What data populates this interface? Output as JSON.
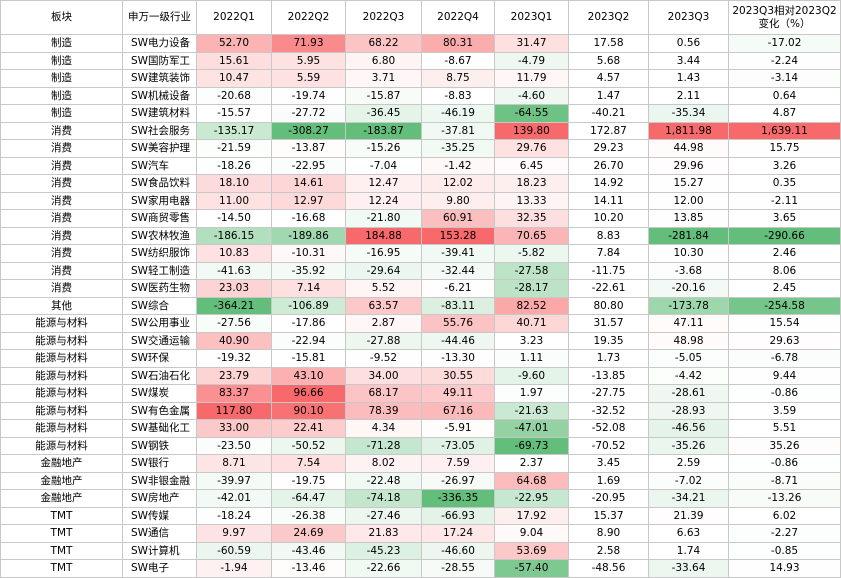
{
  "table": {
    "header": [
      "板块",
      "申万一级行业",
      "2022Q1",
      "2022Q2",
      "2022Q3",
      "2022Q4",
      "2023Q1",
      "2023Q2",
      "2023Q3",
      "2023Q3相对2023Q2变化（%）"
    ],
    "colored_columns": [
      false,
      false,
      true,
      true,
      true,
      true,
      true,
      false,
      true,
      true
    ],
    "scale_colors": {
      "low": "#63be7b",
      "mid": "#ffffff",
      "high": "#f8696b"
    },
    "rows": [
      [
        "制造",
        "SW电力设备",
        "52.70",
        "71.93",
        "68.22",
        "80.31",
        "31.47",
        "17.58",
        "0.56",
        "-17.02"
      ],
      [
        "制造",
        "SW国防军工",
        "15.61",
        "5.95",
        "6.80",
        "-8.67",
        "-4.79",
        "5.68",
        "3.44",
        "-2.24"
      ],
      [
        "制造",
        "SW建筑装饰",
        "10.47",
        "5.59",
        "3.71",
        "8.75",
        "11.79",
        "4.57",
        "1.43",
        "-3.14"
      ],
      [
        "制造",
        "SW机械设备",
        "-20.68",
        "-19.74",
        "-15.87",
        "-8.83",
        "-4.60",
        "1.47",
        "2.11",
        "0.64"
      ],
      [
        "制造",
        "SW建筑材料",
        "-15.57",
        "-27.72",
        "-36.45",
        "-46.19",
        "-64.55",
        "-40.21",
        "-35.34",
        "4.87"
      ],
      [
        "消费",
        "SW社会服务",
        "-135.17",
        "-308.27",
        "-183.87",
        "-37.81",
        "139.80",
        "172.87",
        "1,811.98",
        "1,639.11"
      ],
      [
        "消费",
        "SW美容护理",
        "-21.59",
        "-13.87",
        "-15.26",
        "-35.25",
        "29.76",
        "29.23",
        "44.98",
        "15.75"
      ],
      [
        "消费",
        "SW汽车",
        "-18.26",
        "-22.95",
        "-7.04",
        "-1.42",
        "6.45",
        "26.70",
        "29.96",
        "3.26"
      ],
      [
        "消费",
        "SW食品饮料",
        "18.10",
        "14.61",
        "12.47",
        "12.02",
        "18.23",
        "14.92",
        "15.27",
        "0.35"
      ],
      [
        "消费",
        "SW家用电器",
        "11.00",
        "12.97",
        "12.24",
        "9.80",
        "13.33",
        "14.11",
        "12.00",
        "-2.11"
      ],
      [
        "消费",
        "SW商贸零售",
        "-14.50",
        "-16.68",
        "-21.80",
        "60.91",
        "32.35",
        "10.20",
        "13.85",
        "3.65"
      ],
      [
        "消费",
        "SW农林牧渔",
        "-186.15",
        "-189.86",
        "184.88",
        "153.28",
        "70.65",
        "8.83",
        "-281.84",
        "-290.66"
      ],
      [
        "消费",
        "SW纺织服饰",
        "10.83",
        "-10.31",
        "-16.95",
        "-39.41",
        "-5.82",
        "7.84",
        "10.30",
        "2.46"
      ],
      [
        "消费",
        "SW轻工制造",
        "-41.63",
        "-35.92",
        "-29.64",
        "-32.44",
        "-27.58",
        "-11.75",
        "-3.68",
        "8.06"
      ],
      [
        "消费",
        "SW医药生物",
        "23.03",
        "7.14",
        "5.52",
        "-6.21",
        "-28.17",
        "-22.61",
        "-20.16",
        "2.45"
      ],
      [
        "其他",
        "SW综合",
        "-364.21",
        "-106.89",
        "63.57",
        "-83.11",
        "82.52",
        "80.80",
        "-173.78",
        "-254.58"
      ],
      [
        "能源与材料",
        "SW公用事业",
        "-27.56",
        "-17.86",
        "2.87",
        "55.76",
        "40.71",
        "31.57",
        "47.11",
        "15.54"
      ],
      [
        "能源与材料",
        "SW交通运输",
        "40.90",
        "-22.94",
        "-27.88",
        "-44.46",
        "3.23",
        "19.35",
        "48.98",
        "29.63"
      ],
      [
        "能源与材料",
        "SW环保",
        "-19.32",
        "-15.81",
        "-9.52",
        "-13.30",
        "1.11",
        "1.73",
        "-5.05",
        "-6.78"
      ],
      [
        "能源与材料",
        "SW石油石化",
        "23.79",
        "43.10",
        "34.00",
        "30.55",
        "-9.60",
        "-13.85",
        "-4.42",
        "9.44"
      ],
      [
        "能源与材料",
        "SW煤炭",
        "83.37",
        "96.66",
        "68.17",
        "49.11",
        "1.97",
        "-27.75",
        "-28.61",
        "-0.86"
      ],
      [
        "能源与材料",
        "SW有色金属",
        "117.80",
        "90.10",
        "78.39",
        "67.16",
        "-21.63",
        "-32.52",
        "-28.93",
        "3.59"
      ],
      [
        "能源与材料",
        "SW基础化工",
        "33.00",
        "22.41",
        "4.34",
        "-5.91",
        "-47.01",
        "-52.08",
        "-46.56",
        "5.51"
      ],
      [
        "能源与材料",
        "SW钢铁",
        "-23.50",
        "-50.52",
        "-71.28",
        "-73.05",
        "-69.73",
        "-70.52",
        "-35.26",
        "35.26"
      ],
      [
        "金融地产",
        "SW银行",
        "8.71",
        "7.54",
        "8.02",
        "7.59",
        "2.37",
        "3.45",
        "2.59",
        "-0.86"
      ],
      [
        "金融地产",
        "SW非银金融",
        "-39.97",
        "-19.75",
        "-22.48",
        "-26.97",
        "64.68",
        "1.69",
        "-7.02",
        "-8.71"
      ],
      [
        "金融地产",
        "SW房地产",
        "-42.01",
        "-64.47",
        "-74.18",
        "-336.35",
        "-22.95",
        "-20.95",
        "-34.21",
        "-13.26"
      ],
      [
        "TMT",
        "SW传媒",
        "-18.24",
        "-26.38",
        "-27.46",
        "-66.93",
        "17.92",
        "15.37",
        "21.39",
        "6.02"
      ],
      [
        "TMT",
        "SW通信",
        "9.97",
        "24.69",
        "21.83",
        "17.24",
        "9.04",
        "8.90",
        "6.63",
        "-2.27"
      ],
      [
        "TMT",
        "SW计算机",
        "-60.59",
        "-43.46",
        "-45.23",
        "-46.60",
        "53.69",
        "2.58",
        "1.74",
        "-0.85"
      ],
      [
        "TMT",
        "SW电子",
        "-1.94",
        "-13.46",
        "-22.66",
        "-28.55",
        "-57.40",
        "-48.56",
        "-33.64",
        "14.93"
      ]
    ]
  }
}
